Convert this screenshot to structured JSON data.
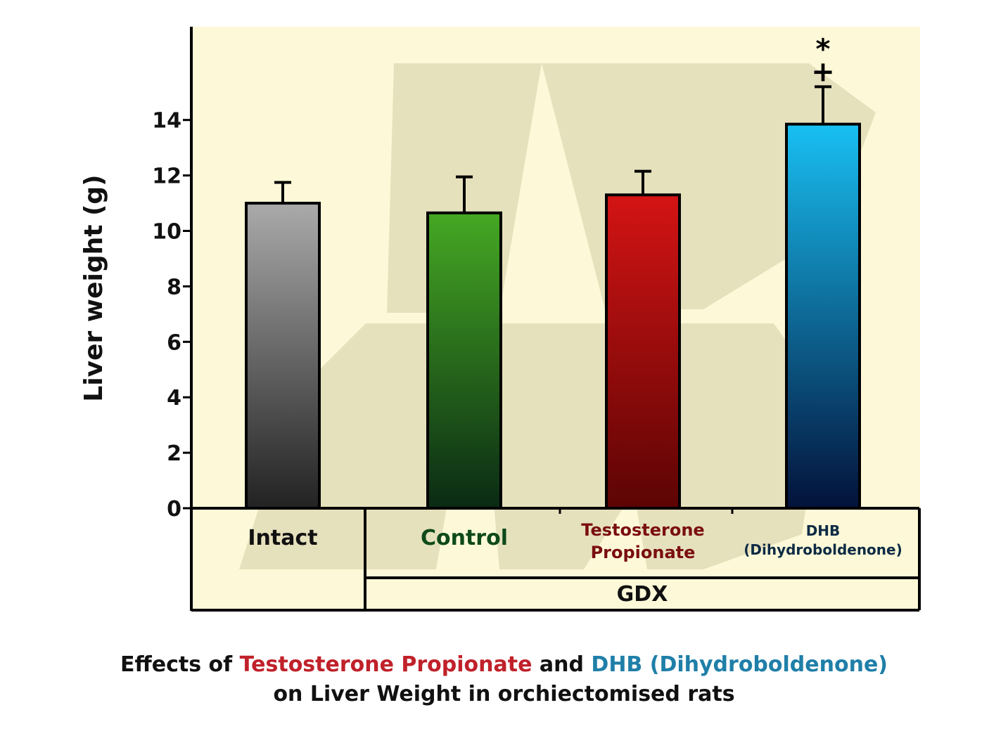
{
  "chart_data": {
    "type": "bar",
    "title": "Effects of Testosterone Propionate and DHB (Dihydroboldenone) on Liver Weight in orchiectomised rats",
    "xlabel": "",
    "ylabel": "Liver weight (g)",
    "ylim": [
      0,
      16
    ],
    "yticks": [
      0,
      2,
      4,
      6,
      8,
      10,
      12,
      14
    ],
    "grid": false,
    "categories": [
      "Intact",
      "Control",
      "Testosterone Propionate",
      "DHB (Dihydroboldenone)"
    ],
    "category_lines": [
      [
        "Intact"
      ],
      [
        "Control"
      ],
      [
        "Testosterone",
        "Propionate"
      ],
      [
        "DHB",
        "(Dihydroboldenone)"
      ]
    ],
    "values": [
      11.0,
      10.65,
      11.3,
      13.85
    ],
    "error_upper": [
      11.75,
      11.95,
      12.15,
      15.2
    ],
    "significance": [
      [],
      [],
      [],
      [
        "+",
        "*"
      ]
    ],
    "group_label": "GDX",
    "group_members": [
      "Control",
      "Testosterone Propionate",
      "DHB (Dihydroboldenone)"
    ],
    "colors": {
      "Intact": [
        "#aaaaaa",
        "#222222"
      ],
      "Control": [
        "#45a823",
        "#0a2a14"
      ],
      "Testosterone Propionate": [
        "#d41414",
        "#5c0404"
      ],
      "DHB (Dihydroboldenone)": [
        "#18c0f2",
        "#03123a"
      ]
    },
    "label_colors": [
      "#111111",
      "#0e4a1a",
      "#7a0e0e",
      "#0e2b45"
    ],
    "plot_background": "#fdf9d8",
    "watermark": "MB"
  },
  "caption": {
    "part1": "Effects of ",
    "part2": "Testosterone Propionate",
    "part3": " and ",
    "part4": "DHB (Dihydroboldenone)",
    "line2": "on Liver Weight in orchiectomised rats"
  }
}
